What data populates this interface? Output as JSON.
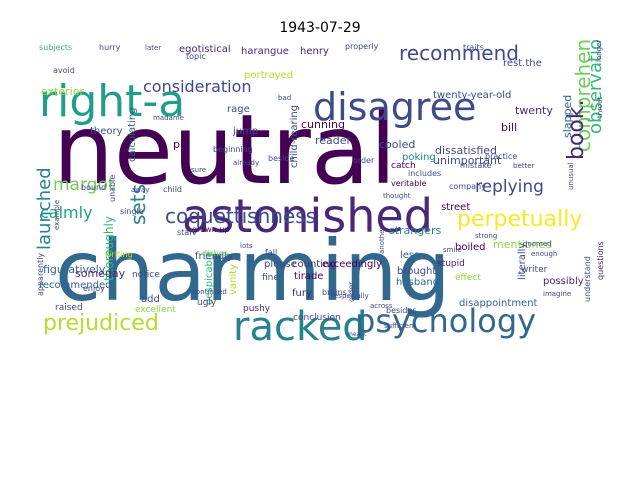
{
  "title": "1943-07-29",
  "words": [
    {
      "text": "neutral",
      "color": "#440154"
    },
    {
      "text": "charming",
      "color": "#31688e"
    },
    {
      "text": "astonished",
      "color": "#482878"
    },
    {
      "text": "right-a",
      "color": "#1f9e89"
    },
    {
      "text": "disagree",
      "color": "#3e4a89"
    },
    {
      "text": "racked",
      "color": "#26828e"
    },
    {
      "text": "psychology",
      "color": "#31688e"
    },
    {
      "text": "prejudiced",
      "color": "#b5de2b"
    },
    {
      "text": "coquettishness",
      "color": "#3e4a89"
    },
    {
      "text": "comprehend",
      "color": "#6ece58"
    },
    {
      "text": "perpetually",
      "color": "#fde725"
    },
    {
      "text": "book.",
      "color": "#482878"
    },
    {
      "text": "observation",
      "color": "#35b779"
    },
    {
      "text": "recommend",
      "color": "#3e4a89"
    },
    {
      "text": "margot",
      "color": "#6ece58"
    },
    {
      "text": "replying",
      "color": "#3e4a89"
    },
    {
      "text": "calmly",
      "color": "#1f9e89"
    },
    {
      "text": "launched",
      "color": "#26828e"
    },
    {
      "text": "sets",
      "color": "#26828e"
    },
    {
      "text": "consideration",
      "color": "#3e4a89"
    },
    {
      "text": "exterior",
      "color": "#90d743"
    },
    {
      "text": "harangue",
      "color": "#482878"
    },
    {
      "text": "henry",
      "color": "#482878"
    },
    {
      "text": "portrayed",
      "color": "#b5de2b"
    },
    {
      "text": "rest.the",
      "color": "#3e4a89"
    },
    {
      "text": "twenty-year-old",
      "color": "#3e4a89"
    },
    {
      "text": "twenty",
      "color": "#482878"
    },
    {
      "text": "bill",
      "color": "#440154"
    },
    {
      "text": "slapped",
      "color": "#31688e"
    },
    {
      "text": "dissatisfied",
      "color": "#3e4a89"
    },
    {
      "text": "unimportant",
      "color": "#3e4a89"
    },
    {
      "text": "strangers",
      "color": "#26828e"
    },
    {
      "text": "mentioned",
      "color": "#90d743"
    },
    {
      "text": "street",
      "color": "#440154"
    },
    {
      "text": "cunning",
      "color": "#440154"
    },
    {
      "text": "reader",
      "color": "#3e4a89"
    },
    {
      "text": "cooled",
      "color": "#3e4a89"
    },
    {
      "text": "poking",
      "color": "#26828e"
    },
    {
      "text": "child-rearing",
      "color": "#3e4a89"
    },
    {
      "text": "theory",
      "color": "#3e4a89"
    },
    {
      "text": "calculating",
      "color": "#31688e"
    },
    {
      "text": "pit",
      "color": "#440154"
    },
    {
      "text": "jump",
      "color": "#3e4a89"
    },
    {
      "text": "rage",
      "color": "#3e4a89"
    },
    {
      "text": "egotistical",
      "color": "#482878"
    },
    {
      "text": "figuratively",
      "color": "#31688e"
    },
    {
      "text": "recommended",
      "color": "#31688e"
    },
    {
      "text": "thoroughly",
      "color": "#35b779"
    },
    {
      "text": "someday",
      "color": "#482878"
    },
    {
      "text": "add",
      "color": "#3e4a89"
    },
    {
      "text": "despicable",
      "color": "#35b779"
    },
    {
      "text": "vanity",
      "color": "#b5de2b"
    },
    {
      "text": "counting",
      "color": "#482878"
    },
    {
      "text": "please",
      "color": "#3e4a89"
    },
    {
      "text": "tirade",
      "color": "#440154"
    },
    {
      "text": "fury",
      "color": "#482878"
    },
    {
      "text": "exceedingly",
      "color": "#440154"
    },
    {
      "text": "less",
      "color": "#31688e"
    },
    {
      "text": "brought",
      "color": "#3e4a89"
    },
    {
      "text": "husband",
      "color": "#31688e"
    },
    {
      "text": "literally",
      "color": "#3e4a89"
    },
    {
      "text": "possibly",
      "color": "#482878"
    },
    {
      "text": "writer",
      "color": "#3e4a89"
    },
    {
      "text": "stupid",
      "color": "#482878"
    },
    {
      "text": "effect",
      "color": "#90d743"
    },
    {
      "text": "disappointment",
      "color": "#31688e"
    },
    {
      "text": "friendly",
      "color": "#3e4a89"
    },
    {
      "text": "boiled",
      "color": "#440154"
    },
    {
      "text": "conclusion",
      "color": "#3e4a89"
    },
    {
      "text": "raised",
      "color": "#3e4a89"
    },
    {
      "text": "excellent",
      "color": "#90d743"
    },
    {
      "text": "ugly",
      "color": "#3e4a89"
    },
    {
      "text": "notice",
      "color": "#3e4a89"
    },
    {
      "text": "fine",
      "color": "#3e4a89"
    },
    {
      "text": "apparently",
      "color": "#3e4a89"
    },
    {
      "text": "pushy",
      "color": "#482878"
    },
    {
      "text": "dishes",
      "color": "#6ece58"
    },
    {
      "text": "grown-up",
      "color": "#440154"
    },
    {
      "text": "single",
      "color": "#3e4a89"
    },
    {
      "text": "unable",
      "color": "#3e4a89"
    },
    {
      "text": "beginning",
      "color": "#3e4a89"
    },
    {
      "text": "catch",
      "color": "#440154"
    },
    {
      "text": "includes",
      "color": "#3e4a89"
    },
    {
      "text": "veritable",
      "color": "#440154"
    },
    {
      "text": "beside",
      "color": "#3e4a89"
    },
    {
      "text": "order",
      "color": "#3e4a89"
    },
    {
      "text": "mistake",
      "color": "#3e4a89"
    },
    {
      "text": "practice",
      "color": "#3e4a89"
    },
    {
      "text": "company",
      "color": "#3e4a89"
    },
    {
      "text": "questions",
      "color": "#482878"
    },
    {
      "text": "understand",
      "color": "#3e4a89"
    },
    {
      "text": "older",
      "color": "#3e4a89"
    },
    {
      "text": "brains",
      "color": "#3e4a89"
    },
    {
      "text": "besides",
      "color": "#3e4a89"
    },
    {
      "text": "topic",
      "color": "#3e4a89"
    },
    {
      "text": "hurry",
      "color": "#3e4a89"
    },
    {
      "text": "subjects",
      "color": "#35b779"
    },
    {
      "text": "avoid",
      "color": "#3e4a89"
    },
    {
      "text": "properly",
      "color": "#3e4a89"
    },
    {
      "text": "traits",
      "color": "#3e4a89"
    },
    {
      "text": "throat",
      "color": "#3e4a89"
    },
    {
      "text": "bound",
      "color": "#3e4a89"
    },
    {
      "text": "child",
      "color": "#3e4a89"
    },
    {
      "text": "start",
      "color": "#3e4a89"
    },
    {
      "text": "writing",
      "color": "#b5de2b"
    },
    {
      "text": "enjoy",
      "color": "#3e4a89"
    },
    {
      "text": "fall",
      "color": "#3e4a89"
    },
    {
      "text": "later",
      "color": "#3e4a89"
    },
    {
      "text": "unusual",
      "color": "#3e4a89"
    },
    {
      "text": "longer",
      "color": "#3e4a89"
    },
    {
      "text": "strong",
      "color": "#3e4a89"
    },
    {
      "text": "doomed",
      "color": "#3e4a89"
    },
    {
      "text": "enough",
      "color": "#3e4a89"
    },
    {
      "text": "imagine",
      "color": "#3e4a89"
    },
    {
      "text": "thought",
      "color": "#3e4a89"
    },
    {
      "text": "madame",
      "color": "#3e4a89"
    },
    {
      "text": "already",
      "color": "#3e4a89"
    },
    {
      "text": "sure",
      "color": "#3e4a89"
    },
    {
      "text": "better",
      "color": "#3e4a89"
    },
    {
      "text": "bad",
      "color": "#3e4a89"
    },
    {
      "text": "example",
      "color": "#3e4a89"
    },
    {
      "text": "away",
      "color": "#3e4a89"
    },
    {
      "text": "lots",
      "color": "#3e4a89"
    },
    {
      "text": "smile",
      "color": "#3e4a89"
    },
    {
      "text": "another",
      "color": "#3e4a89"
    },
    {
      "text": "especially",
      "color": "#3e4a89"
    },
    {
      "text": "continued",
      "color": "#3e4a89"
    },
    {
      "text": "across",
      "color": "#3e4a89"
    },
    {
      "text": "sufficient",
      "color": "#3e4a89"
    },
    {
      "text": "meant",
      "color": "#3e4a89"
    },
    {
      "text": "young",
      "color": "#3e4a89"
    },
    {
      "text": "believe",
      "color": "#3e4a89"
    }
  ]
}
